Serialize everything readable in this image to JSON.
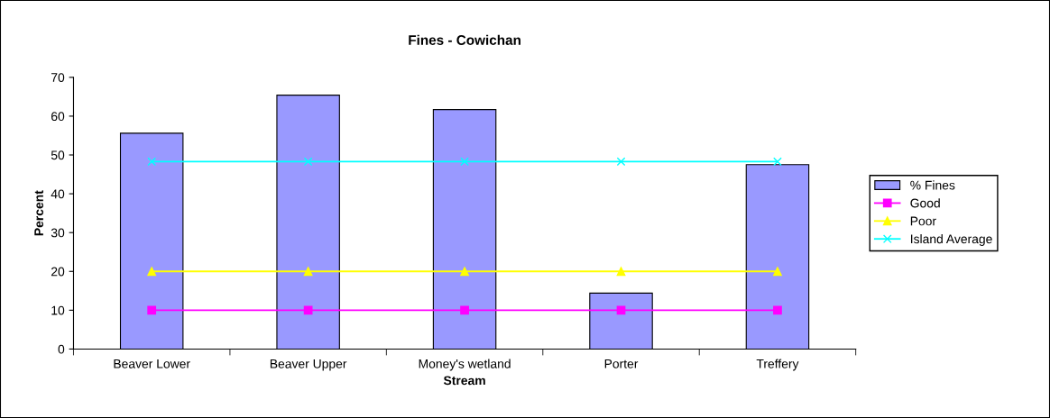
{
  "chart_data": {
    "type": "bar",
    "title": "Fines - Cowichan",
    "xlabel": "Stream",
    "ylabel": "Percent",
    "categories": [
      "Beaver Lower",
      "Beaver Upper",
      "Money's wetland",
      "Porter",
      "Treffery"
    ],
    "series": [
      {
        "name": "% Fines",
        "color": "#9999ff",
        "values": [
          55.6,
          65.4,
          61.7,
          14.4,
          47.5
        ]
      },
      {
        "name": "Good",
        "type": "line",
        "color": "#ff00ff",
        "marker": "square",
        "values": [
          10,
          10,
          10,
          10,
          10
        ]
      },
      {
        "name": "Poor",
        "type": "line",
        "color": "#ffff00",
        "marker": "triangle",
        "values": [
          20,
          20,
          20,
          20,
          20
        ]
      },
      {
        "name": "Island Average",
        "type": "line",
        "color": "#00ffff",
        "marker": "cross",
        "values": [
          48.3,
          48.3,
          48.3,
          48.3,
          48.3
        ]
      }
    ],
    "ylim": [
      0,
      70
    ],
    "yticks": [
      0,
      10,
      20,
      30,
      40,
      50,
      60,
      70
    ],
    "grid": false,
    "legend": "right"
  }
}
